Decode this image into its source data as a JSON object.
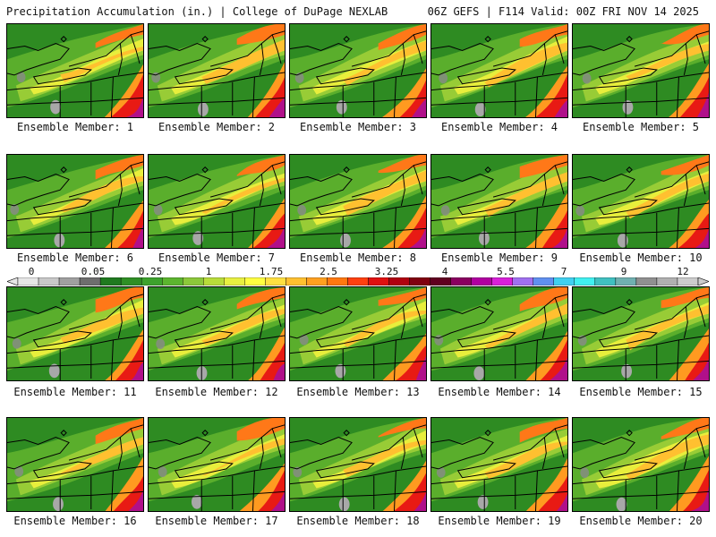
{
  "header": {
    "title": "Precipitation Accumulation (in.) | College of DuPage NEXLAB",
    "run_info": "06Z GEFS | F114 Valid: 00Z FRI NOV 14 2025"
  },
  "panels": [
    {
      "label": "Ensemble Member: 1"
    },
    {
      "label": "Ensemble Member: 2"
    },
    {
      "label": "Ensemble Member: 3"
    },
    {
      "label": "Ensemble Member: 4"
    },
    {
      "label": "Ensemble Member: 5"
    },
    {
      "label": "Ensemble Member: 6"
    },
    {
      "label": "Ensemble Member: 7"
    },
    {
      "label": "Ensemble Member: 8"
    },
    {
      "label": "Ensemble Member: 9"
    },
    {
      "label": "Ensemble Member: 10"
    },
    {
      "label": "Ensemble Member: 11"
    },
    {
      "label": "Ensemble Member: 12"
    },
    {
      "label": "Ensemble Member: 13"
    },
    {
      "label": "Ensemble Member: 14"
    },
    {
      "label": "Ensemble Member: 15"
    },
    {
      "label": "Ensemble Member: 16"
    },
    {
      "label": "Ensemble Member: 17"
    },
    {
      "label": "Ensemble Member: 18"
    },
    {
      "label": "Ensemble Member: 19"
    },
    {
      "label": "Ensemble Member: 20"
    }
  ],
  "colorbar": {
    "labels": [
      "0",
      "0.05",
      "0.25",
      "1",
      "1.75",
      "2.5",
      "3.25",
      "4",
      "5.5",
      "7",
      "9",
      "12"
    ],
    "colors": [
      "#e6e6e6",
      "#c8c8c8",
      "#a0a0a0",
      "#6e6e6e",
      "#207a20",
      "#2f8f25",
      "#3da22d",
      "#5cb52f",
      "#8cc83a",
      "#b8dc3a",
      "#e8f040",
      "#ffff40",
      "#ffe040",
      "#ffc030",
      "#ffa020",
      "#ff7810",
      "#ff4010",
      "#e01010",
      "#b00010",
      "#800010",
      "#600020",
      "#8a0060",
      "#b000a0",
      "#d820d8",
      "#a070f0",
      "#6090f0",
      "#40d0f0",
      "#40f0f0",
      "#40c0c0",
      "#70b0b0",
      "#909090",
      "#b0b0b0",
      "#cccccc"
    ]
  }
}
